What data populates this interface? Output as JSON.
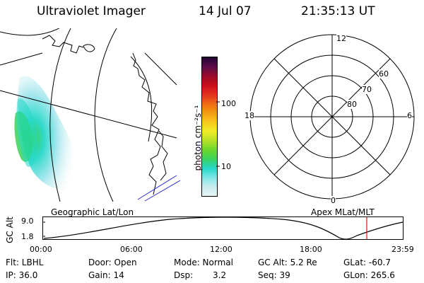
{
  "header": {
    "instrument": "Ultraviolet Imager",
    "date": "14 Jul 07",
    "time": "21:35:13 UT"
  },
  "colorbar": {
    "unit_label": "photon cm⁻²s⁻¹",
    "ticks": [
      "100",
      "10"
    ],
    "scale": "log",
    "colors": [
      "#e8f4f6",
      "#c8ecee",
      "#7de6e6",
      "#25d8c8",
      "#39d35f",
      "#6bd82c",
      "#b6e22a",
      "#f0ec28",
      "#f8c820",
      "#f39b12",
      "#ee6a10",
      "#e03020",
      "#c80e1c",
      "#9a0a2c",
      "#5a0a4a",
      "#1f0530"
    ]
  },
  "left_panel": {
    "caption": "Geographic Lat/Lon"
  },
  "right_panel": {
    "caption": "Apex MLat/MLT",
    "mlt_labels": {
      "top": "12",
      "left": "18",
      "right": "6",
      "bottom": "0"
    },
    "lat_labels": [
      "60",
      "70",
      "80"
    ]
  },
  "orbit_plot": {
    "ylabel": "GC Alt",
    "yticks": [
      "9.0",
      "1.8"
    ],
    "xticks": [
      "00:00",
      "06:00",
      "12:00",
      "18:00",
      "23:59"
    ],
    "current_time_marker": "21:35",
    "marker_color": "#e01010"
  },
  "info": {
    "row1": {
      "filter": "Flt: LBHL",
      "door": "Door: Open",
      "mode": "Mode: Normal",
      "gc_alt": "GC Alt: 5.2 Re",
      "glat": "GLat: -60.7"
    },
    "row2": {
      "ip": "IP: 36.0",
      "gain": "Gain: 14",
      "dsp_label": "Dsp:",
      "dsp_value": "3.2",
      "seq": "Seq: 39",
      "glon": "GLon: 265.6"
    }
  }
}
